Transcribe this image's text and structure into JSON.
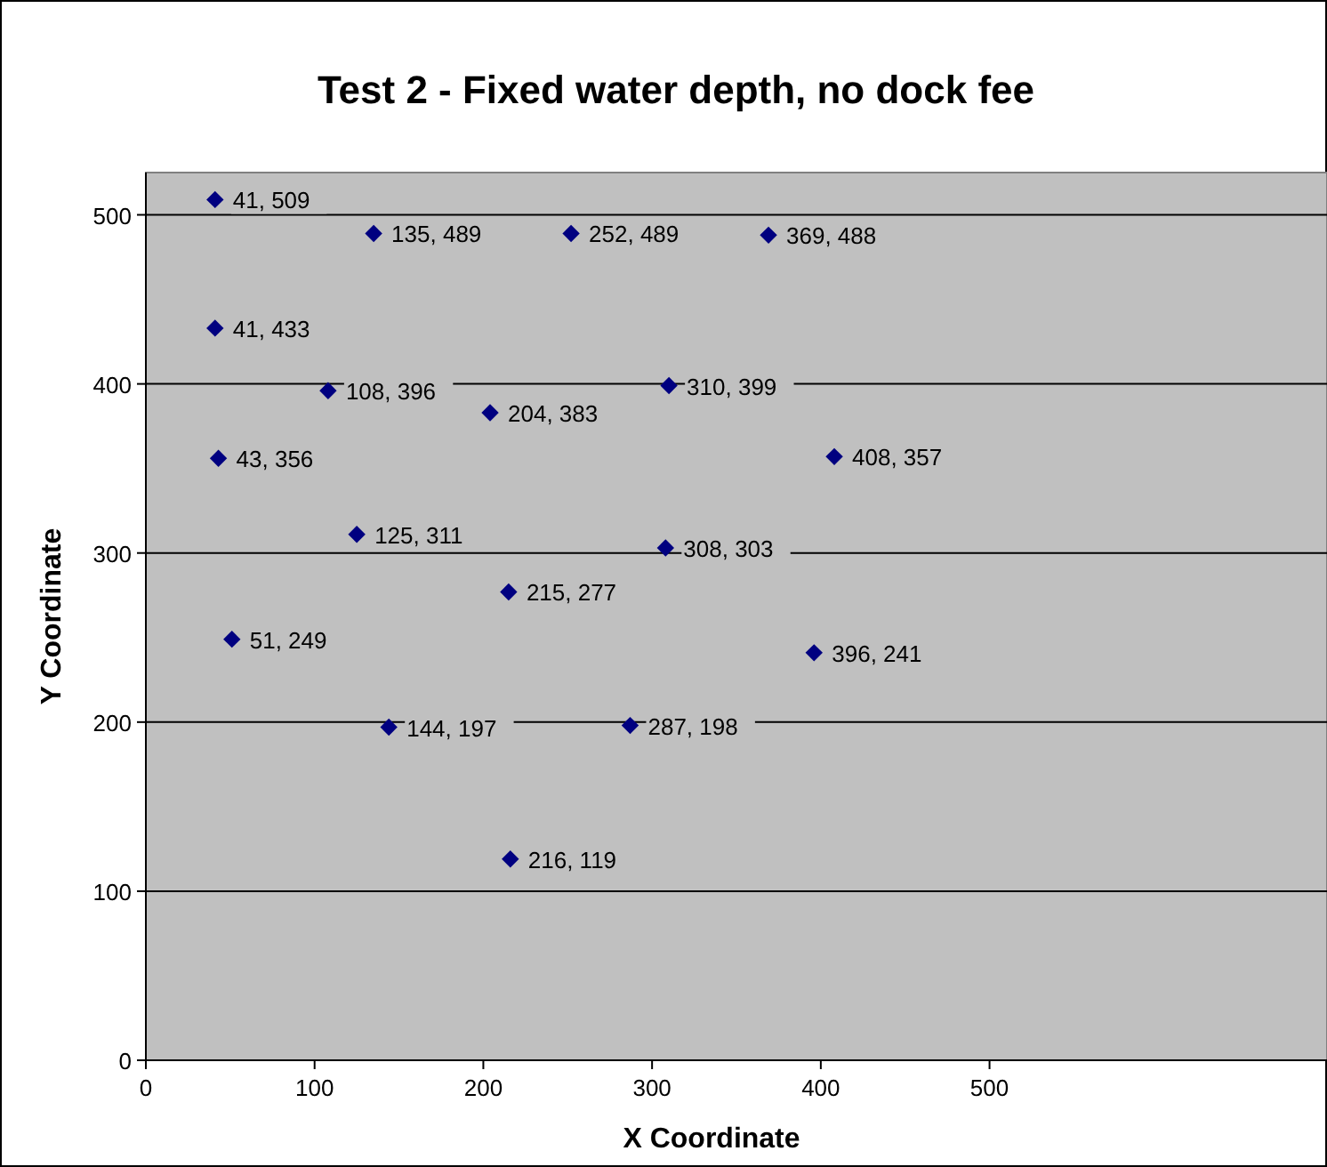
{
  "chart_data": {
    "type": "scatter",
    "title": "Test 2 - Fixed water depth, no dock fee",
    "xlabel": "X Coordinate",
    "ylabel": "Y Coordinate",
    "x": [
      41,
      135,
      252,
      369,
      41,
      108,
      204,
      310,
      43,
      408,
      125,
      308,
      215,
      51,
      396,
      144,
      287,
      216
    ],
    "series": [
      {
        "color": "#000080",
        "values": [
          509,
          489,
          489,
          488,
          433,
          396,
          383,
          399,
          356,
          357,
          311,
          303,
          277,
          249,
          241,
          197,
          198,
          119
        ]
      }
    ],
    "xlim": [
      0,
      700
    ],
    "xticks": [
      0,
      100,
      200,
      300,
      400,
      500
    ],
    "ylim": [
      0,
      525
    ],
    "yticks": [
      0,
      100,
      200,
      300,
      400,
      500
    ],
    "value_labels": [
      "41, 509",
      "135, 489",
      "252, 489",
      "369, 488",
      "41, 433",
      "108, 396",
      "204, 383",
      "310, 399",
      "43, 356",
      "408, 357",
      "125, 311",
      "308, 303",
      "215, 277",
      "51, 249",
      "396, 241",
      "144, 197",
      "287, 198",
      "216, 119"
    ],
    "grid": "y",
    "marker": "diamond"
  }
}
